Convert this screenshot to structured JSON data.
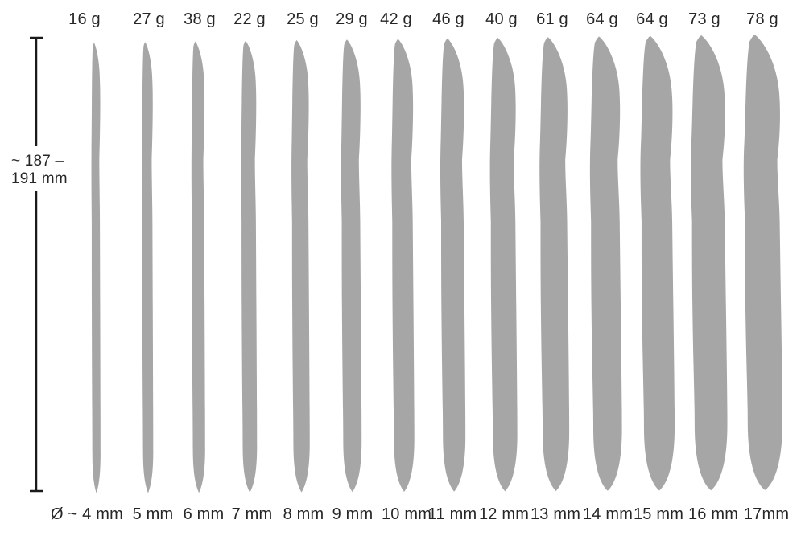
{
  "chart_data": {
    "type": "diagram",
    "length_annotation": {
      "line1": "~ 187 –",
      "line2": "191 mm"
    },
    "items": [
      {
        "weight_label": "16 g",
        "diameter_label": "Ø ~ 4 mm",
        "diameter_mm": 4,
        "weight_g": 16
      },
      {
        "weight_label": "27 g",
        "diameter_label": "5 mm",
        "diameter_mm": 5,
        "weight_g": 27
      },
      {
        "weight_label": "38 g",
        "diameter_label": "6 mm",
        "diameter_mm": 6,
        "weight_g": 38
      },
      {
        "weight_label": "22 g",
        "diameter_label": "7 mm",
        "diameter_mm": 7,
        "weight_g": 22
      },
      {
        "weight_label": "25 g",
        "diameter_label": "8 mm",
        "diameter_mm": 8,
        "weight_g": 25
      },
      {
        "weight_label": "29 g",
        "diameter_label": "9 mm",
        "diameter_mm": 9,
        "weight_g": 29
      },
      {
        "weight_label": "42 g",
        "diameter_label": "10 mm",
        "diameter_mm": 10,
        "weight_g": 42
      },
      {
        "weight_label": "46 g",
        "diameter_label": "11 mm",
        "diameter_mm": 11,
        "weight_g": 46
      },
      {
        "weight_label": "40 g",
        "diameter_label": "12 mm",
        "diameter_mm": 12,
        "weight_g": 40
      },
      {
        "weight_label": "61 g",
        "diameter_label": "13 mm",
        "diameter_mm": 13,
        "weight_g": 61
      },
      {
        "weight_label": "64 g",
        "diameter_label": "14 mm",
        "diameter_mm": 14,
        "weight_g": 64
      },
      {
        "weight_label": "64 g",
        "diameter_label": "15 mm",
        "diameter_mm": 15,
        "weight_g": 64
      },
      {
        "weight_label": "73 g",
        "diameter_label": "16 mm",
        "diameter_mm": 16,
        "weight_g": 73
      },
      {
        "weight_label": "78 g",
        "diameter_label": "17mm",
        "diameter_mm": 17,
        "weight_g": 78
      }
    ],
    "colors": {
      "shape": "#a6a6a6",
      "text": "#262626",
      "bracket": "#1a1a1a",
      "background": "#ffffff"
    }
  }
}
